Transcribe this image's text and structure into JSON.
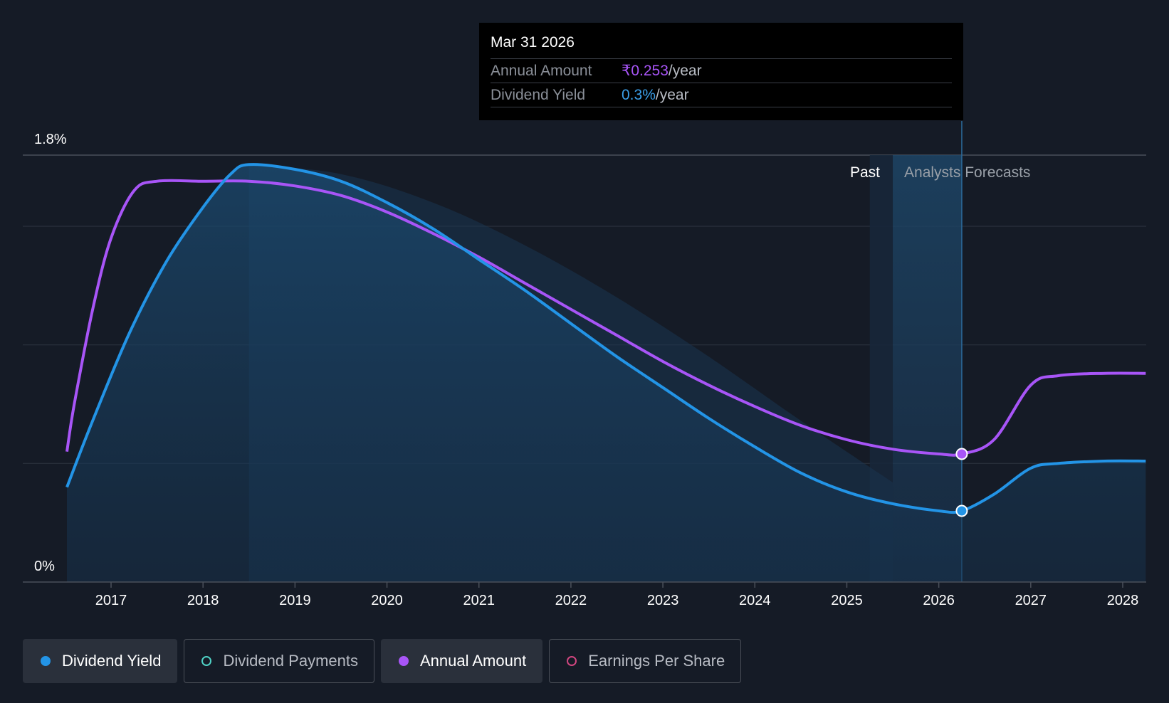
{
  "tooltip": {
    "date": "Mar 31 2026",
    "rows": [
      {
        "label": "Annual Amount",
        "value": "₹0.253",
        "unit": "/year"
      },
      {
        "label": "Dividend Yield",
        "value": "0.3%",
        "unit": "/year"
      }
    ]
  },
  "legend": [
    {
      "label": "Dividend Yield",
      "color": "#2394e6",
      "active": true,
      "filled": true,
      "icon": "filled-circle-icon"
    },
    {
      "label": "Dividend Payments",
      "color": "#4fd1c5",
      "active": false,
      "filled": false,
      "icon": "hollow-circle-icon"
    },
    {
      "label": "Annual Amount",
      "color": "#a855f7",
      "active": true,
      "filled": true,
      "icon": "filled-circle-icon"
    },
    {
      "label": "Earnings Per Share",
      "color": "#d0467f",
      "active": false,
      "filled": false,
      "icon": "hollow-circle-icon"
    }
  ],
  "chart_data": {
    "type": "line",
    "title": "",
    "xlabel": "",
    "ylabel": "",
    "x_ticks": [
      "2017",
      "2018",
      "2019",
      "2020",
      "2021",
      "2022",
      "2023",
      "2024",
      "2025",
      "2026",
      "2027",
      "2028"
    ],
    "y_tick_labels": [
      "1.8%",
      "0%"
    ],
    "ylim": [
      0,
      1.8
    ],
    "xlim": [
      2016.5,
      2028.25
    ],
    "grid": true,
    "past_label": "Past",
    "forecast_label": "Analysts Forecasts",
    "forecast_start": 2025.5,
    "highlight_x": 2026.25,
    "series": [
      {
        "name": "Annual Amount",
        "color": "#a855f7",
        "points": [
          [
            2016.52,
            0.55
          ],
          [
            2016.6,
            0.75
          ],
          [
            2016.8,
            1.15
          ],
          [
            2017.0,
            1.45
          ],
          [
            2017.25,
            1.65
          ],
          [
            2017.5,
            1.69
          ],
          [
            2018.0,
            1.69
          ],
          [
            2018.5,
            1.69
          ],
          [
            2019.0,
            1.67
          ],
          [
            2019.5,
            1.63
          ],
          [
            2020.0,
            1.56
          ],
          [
            2020.5,
            1.47
          ],
          [
            2021.0,
            1.37
          ],
          [
            2021.5,
            1.26
          ],
          [
            2022.0,
            1.15
          ],
          [
            2022.5,
            1.04
          ],
          [
            2023.0,
            0.93
          ],
          [
            2023.5,
            0.83
          ],
          [
            2024.0,
            0.74
          ],
          [
            2024.5,
            0.66
          ],
          [
            2025.0,
            0.6
          ],
          [
            2025.5,
            0.56
          ],
          [
            2026.0,
            0.54
          ],
          [
            2026.25,
            0.54
          ],
          [
            2026.6,
            0.6
          ],
          [
            2027.0,
            0.83
          ],
          [
            2027.3,
            0.87
          ],
          [
            2027.8,
            0.88
          ],
          [
            2028.25,
            0.88
          ]
        ]
      },
      {
        "name": "Dividend Yield",
        "color": "#2394e6",
        "points": [
          [
            2016.52,
            0.4
          ],
          [
            2016.8,
            0.68
          ],
          [
            2017.2,
            1.05
          ],
          [
            2017.6,
            1.35
          ],
          [
            2018.0,
            1.58
          ],
          [
            2018.3,
            1.72
          ],
          [
            2018.5,
            1.76
          ],
          [
            2019.0,
            1.74
          ],
          [
            2019.5,
            1.69
          ],
          [
            2020.0,
            1.6
          ],
          [
            2020.5,
            1.49
          ],
          [
            2021.0,
            1.36
          ],
          [
            2021.5,
            1.23
          ],
          [
            2022.0,
            1.09
          ],
          [
            2022.5,
            0.95
          ],
          [
            2023.0,
            0.82
          ],
          [
            2023.5,
            0.69
          ],
          [
            2024.0,
            0.57
          ],
          [
            2024.5,
            0.46
          ],
          [
            2025.0,
            0.38
          ],
          [
            2025.5,
            0.33
          ],
          [
            2026.0,
            0.3
          ],
          [
            2026.25,
            0.3
          ],
          [
            2026.6,
            0.37
          ],
          [
            2027.0,
            0.48
          ],
          [
            2027.3,
            0.5
          ],
          [
            2027.8,
            0.51
          ],
          [
            2028.25,
            0.51
          ]
        ]
      }
    ]
  }
}
